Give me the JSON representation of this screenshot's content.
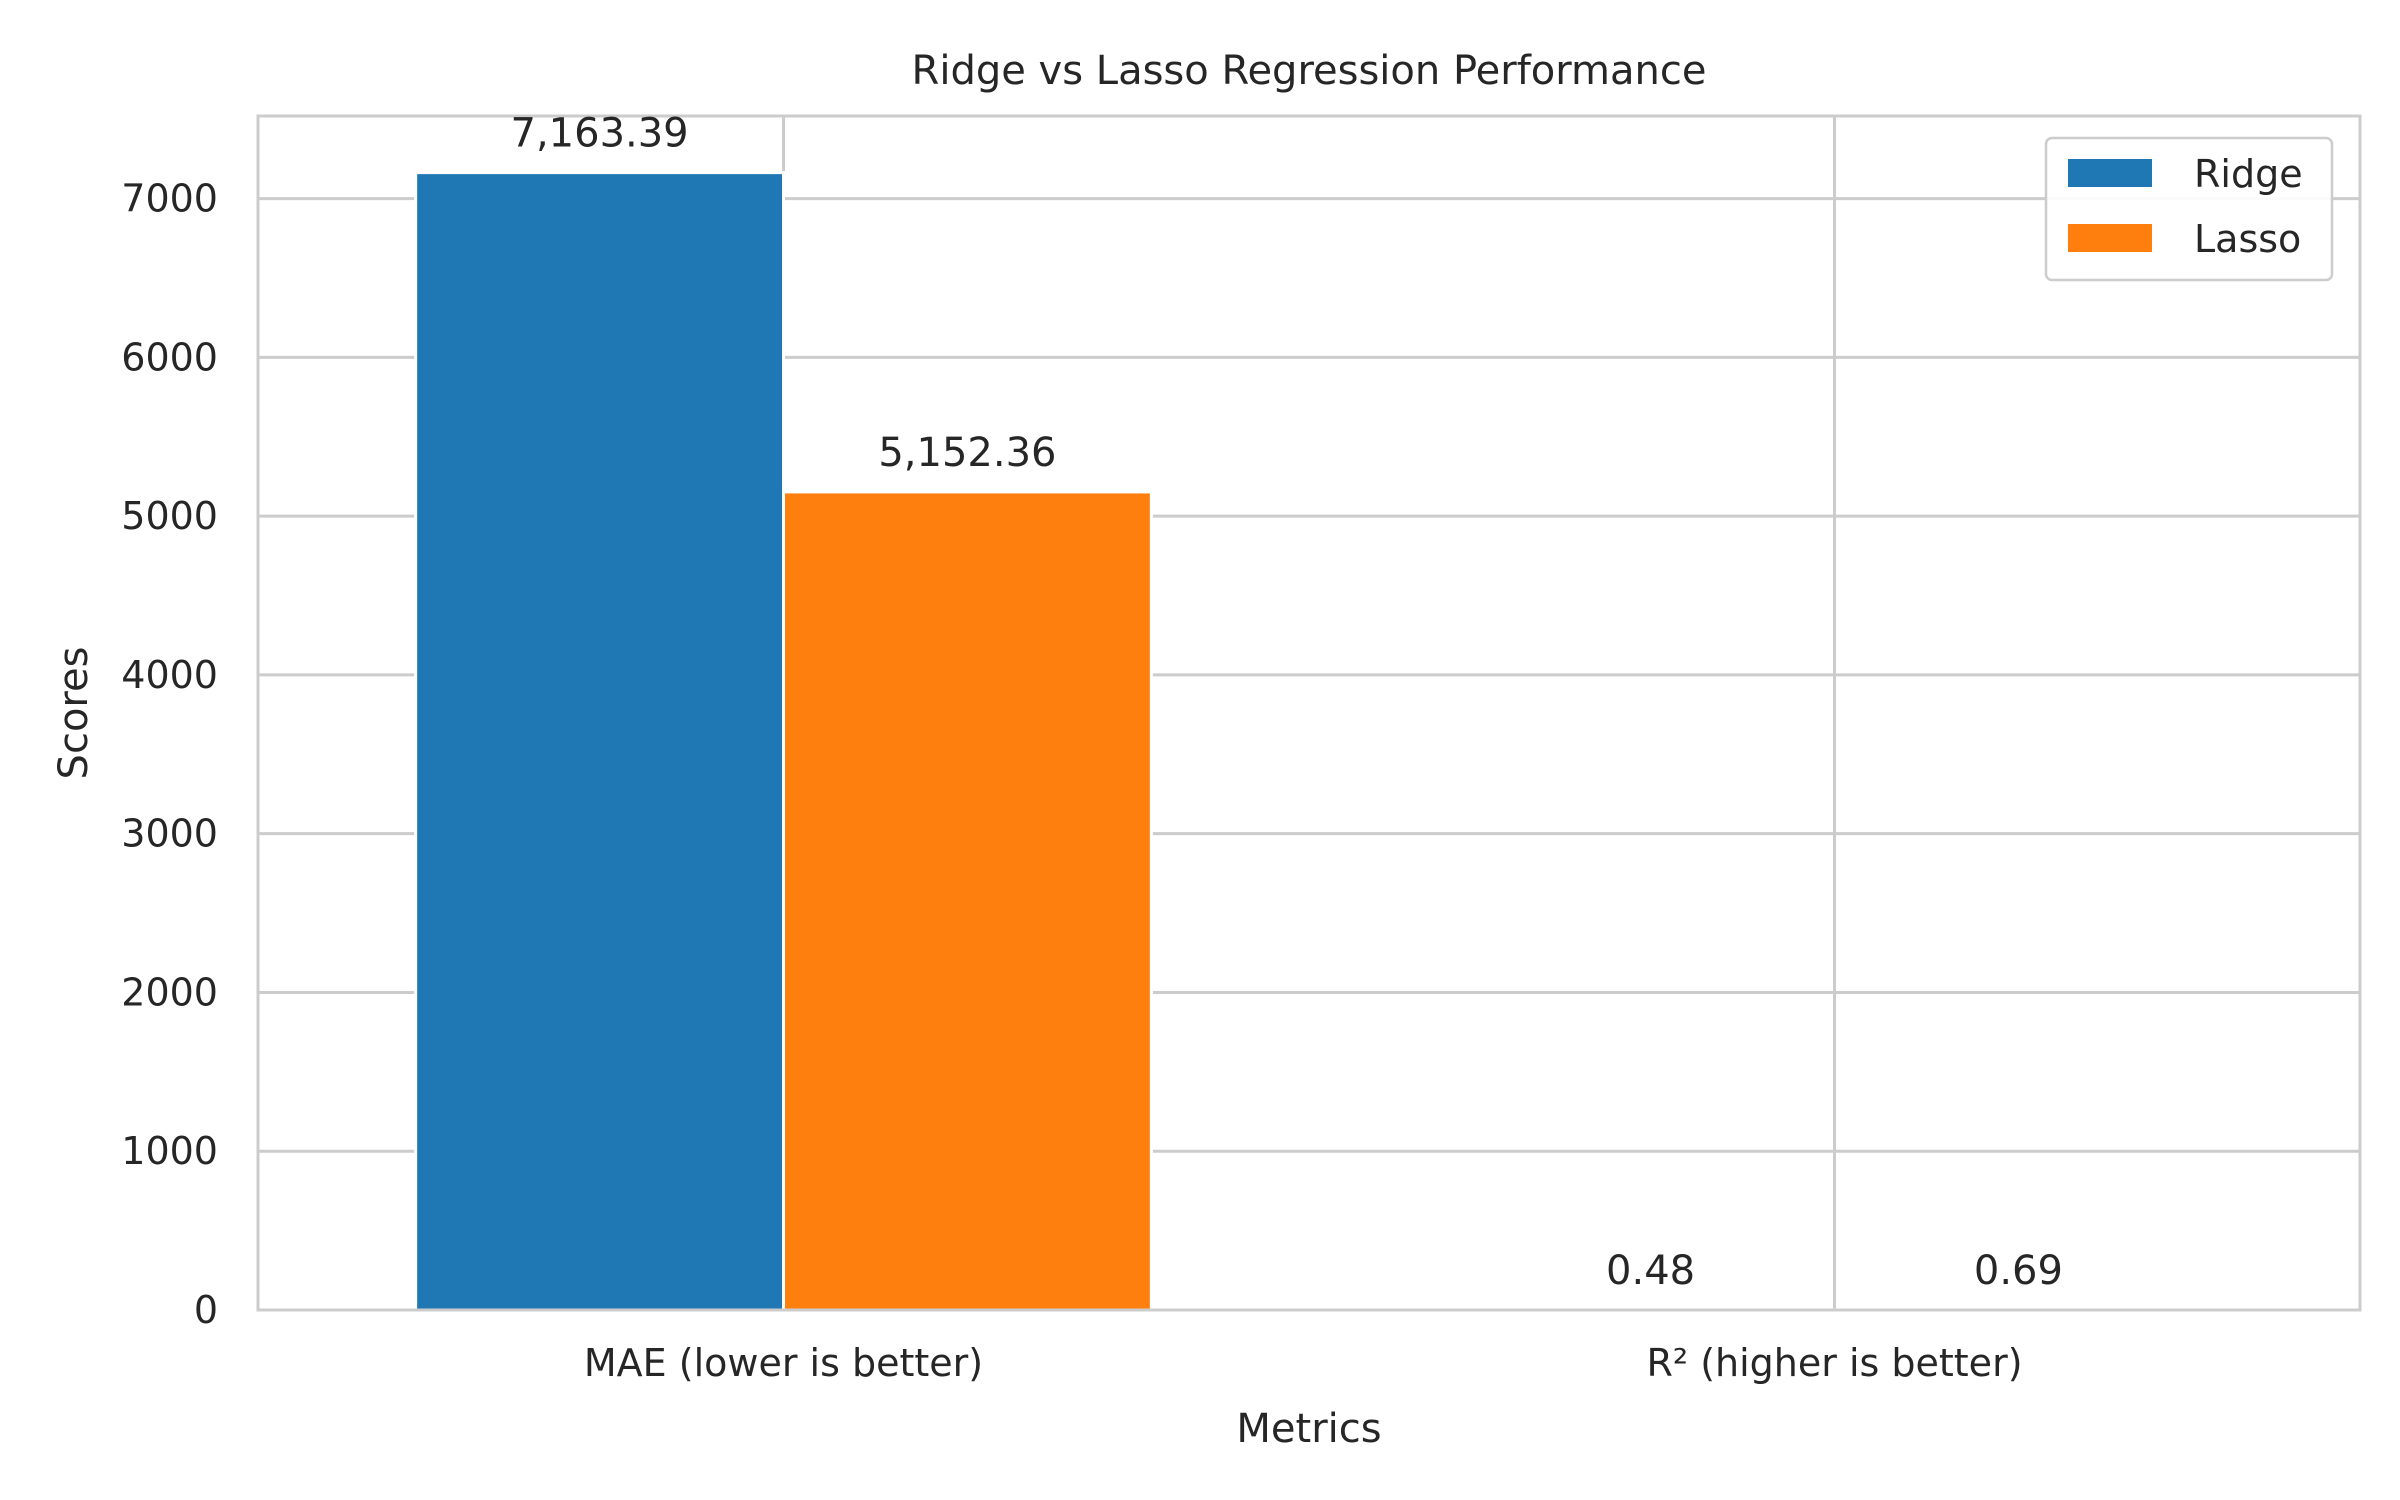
{
  "chart_data": {
    "type": "bar",
    "title": "Ridge vs Lasso Regression Performance",
    "xlabel": "Metrics",
    "ylabel": "Scores",
    "categories": [
      "MAE (lower is better)",
      "R² (higher is better)"
    ],
    "series": [
      {
        "name": "Ridge",
        "values": [
          7163.39,
          0.48
        ],
        "labels": [
          "7,163.39",
          "0.48"
        ],
        "color": "#1f77b4"
      },
      {
        "name": "Lasso",
        "values": [
          5152.36,
          0.69
        ],
        "labels": [
          "5,152.36",
          "0.69"
        ],
        "color": "#ff7f0e"
      }
    ],
    "ylim": [
      0,
      7520
    ],
    "yticks": [
      0,
      1000,
      2000,
      3000,
      4000,
      5000,
      6000,
      7000
    ],
    "yticklabels": [
      "0",
      "1000",
      "2000",
      "3000",
      "4000",
      "5000",
      "6000",
      "7000"
    ],
    "grid": true,
    "legend_position": "top-right"
  }
}
